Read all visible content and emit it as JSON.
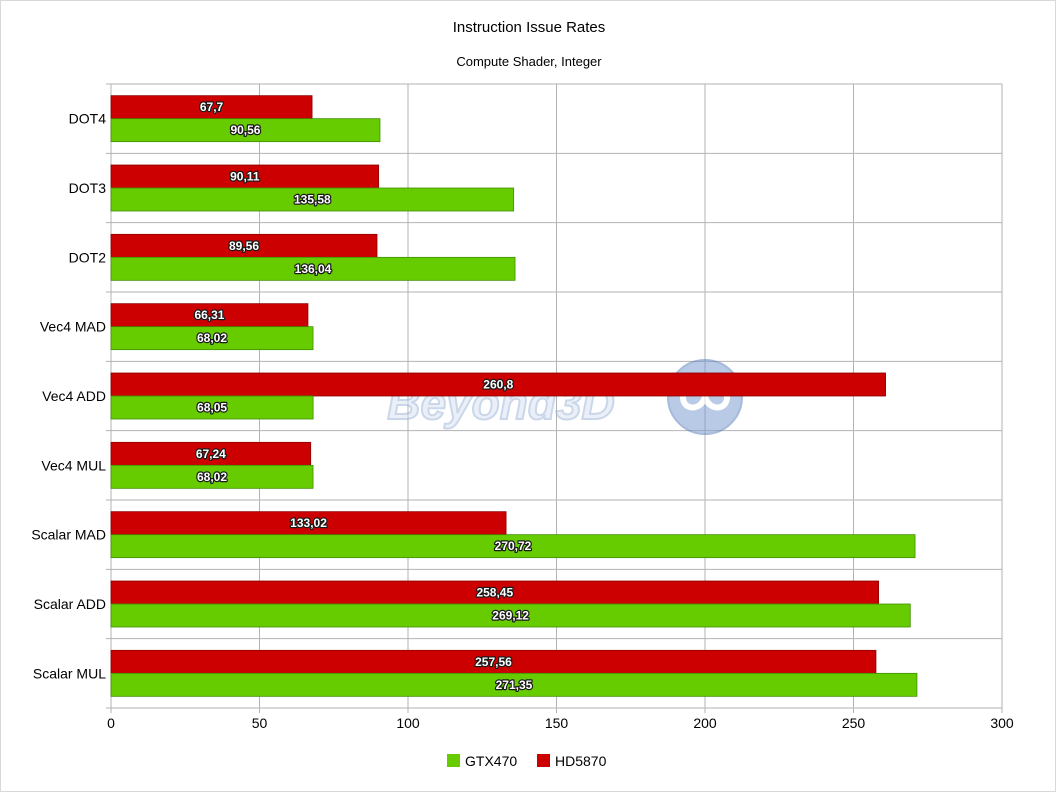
{
  "chart_data": {
    "type": "bar",
    "orientation": "horizontal",
    "title": "Instruction Issue Rates",
    "subtitle": "Compute Shader, Integer",
    "categories": [
      "DOT4",
      "DOT3",
      "DOT2",
      "Vec4 MAD",
      "Vec4 ADD",
      "Vec4 MUL",
      "Scalar MAD",
      "Scalar ADD",
      "Scalar MUL"
    ],
    "series": [
      {
        "name": "HD5870",
        "color": "#cc0000",
        "values": [
          67.7,
          90.11,
          89.56,
          66.31,
          260.8,
          67.24,
          133.02,
          258.45,
          257.56
        ],
        "labels": [
          "67,7",
          "90,11",
          "89,56",
          "66,31",
          "260,8",
          "67,24",
          "133,02",
          "258,45",
          "257,56"
        ]
      },
      {
        "name": "GTX470",
        "color": "#66cc00",
        "values": [
          90.56,
          135.58,
          136.04,
          68.02,
          68.05,
          68.02,
          270.72,
          269.12,
          271.35
        ],
        "labels": [
          "90,56",
          "135,58",
          "136,04",
          "68,02",
          "68,05",
          "68,02",
          "270,72",
          "269,12",
          "271,35"
        ]
      }
    ],
    "xlim": [
      0,
      300
    ],
    "xticks": [
      0,
      50,
      100,
      150,
      200,
      250,
      300
    ],
    "grid": true,
    "legend_position": "bottom",
    "legend_order": [
      "GTX470",
      "HD5870"
    ]
  },
  "watermark": {
    "text": "Beyond3D",
    "icon": "beyond3d-logo-icon"
  }
}
